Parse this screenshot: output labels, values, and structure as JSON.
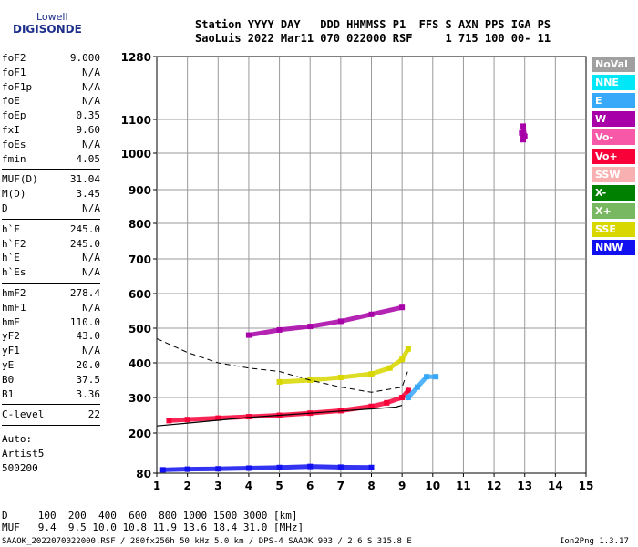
{
  "logo": {
    "line1": "Lowell",
    "line2": "DIGISONDE"
  },
  "header": {
    "line1": "Station YYYY DAY   DDD HHMMSS P1  FFS S AXN PPS IGA PS",
    "line2": "SaoLuis 2022 Mar11 070 022000 RSF     1 715 100 00- 11"
  },
  "params": [
    {
      "name": "foF2",
      "value": "9.000"
    },
    {
      "name": "foF1",
      "value": "N/A"
    },
    {
      "name": "foF1p",
      "value": "N/A"
    },
    {
      "name": "foE",
      "value": "N/A"
    },
    {
      "name": "foEp",
      "value": "0.35"
    },
    {
      "name": "fxI",
      "value": "9.60"
    },
    {
      "name": "foEs",
      "value": "N/A"
    },
    {
      "name": "fmin",
      "value": "4.05"
    },
    {
      "name": "MUF(D)",
      "value": "31.04"
    },
    {
      "name": "M(D)",
      "value": "3.45"
    },
    {
      "name": "D",
      "value": "N/A"
    },
    {
      "name": "h`F",
      "value": "245.0"
    },
    {
      "name": "h`F2",
      "value": "245.0"
    },
    {
      "name": "h`E",
      "value": "N/A"
    },
    {
      "name": "h`Es",
      "value": "N/A"
    },
    {
      "name": "hmF2",
      "value": "278.4"
    },
    {
      "name": "hmF1",
      "value": "N/A"
    },
    {
      "name": "hmE",
      "value": "110.0"
    },
    {
      "name": "yF2",
      "value": "43.0"
    },
    {
      "name": "yF1",
      "value": "N/A"
    },
    {
      "name": "yE",
      "value": "20.0"
    },
    {
      "name": "B0",
      "value": "37.5"
    },
    {
      "name": "B1",
      "value": "3.36"
    },
    {
      "name": "C-level",
      "value": "22"
    }
  ],
  "autoscaler": {
    "line1": "Auto:",
    "line2": "Artist5",
    "line3": "500200"
  },
  "footer": {
    "d_row": "D     100  200  400  600  800 1000 1500 3000 [km]",
    "muf_row": "MUF   9.4  9.5 10.0 10.8 11.9 13.6 18.4 31.0 [MHz]",
    "file_info": "SAAOK_2022070022000.RSF / 280fx256h 50 kHz 5.0 km / DPS-4 SAAOK 903 / 2.6 S 315.8 E",
    "version": "Ion2Png 1.3.17"
  },
  "legend": [
    {
      "label": "NoVal",
      "color": "#a0a0a0"
    },
    {
      "label": "NNE",
      "color": "#00e8f8"
    },
    {
      "label": "E",
      "color": "#38a8f8"
    },
    {
      "label": "W",
      "color": "#a800a8"
    },
    {
      "label": "Vo-",
      "color": "#f858a8"
    },
    {
      "label": "Vo+",
      "color": "#f80038"
    },
    {
      "label": "SSW",
      "color": "#f8b0b0"
    },
    {
      "label": "X-",
      "color": "#008000"
    },
    {
      "label": "X+",
      "color": "#78b860"
    },
    {
      "label": "SSE",
      "color": "#d8d800"
    },
    {
      "label": "NNW",
      "color": "#1010f0"
    }
  ],
  "chart_data": {
    "type": "scatter",
    "xlabel": "",
    "ylabel": "",
    "xlim": [
      1,
      15
    ],
    "ylim": [
      80,
      1280
    ],
    "x_ticks": [
      1,
      2,
      3,
      4,
      5,
      6,
      7,
      8,
      9,
      10,
      11,
      12,
      13,
      14,
      15
    ],
    "y_ticks": [
      80,
      200,
      300,
      400,
      500,
      600,
      700,
      800,
      900,
      1000,
      1100,
      1280
    ],
    "traces": [
      {
        "name": "O-trace F2",
        "color": "#f80038",
        "points": [
          [
            1.4,
            235
          ],
          [
            2.0,
            238
          ],
          [
            3.0,
            242
          ],
          [
            4.0,
            246
          ],
          [
            5.0,
            250
          ],
          [
            6.0,
            256
          ],
          [
            7.0,
            263
          ],
          [
            8.0,
            275
          ],
          [
            8.5,
            285
          ],
          [
            9.0,
            300
          ],
          [
            9.2,
            320
          ]
        ]
      },
      {
        "name": "X-trace F2",
        "color": "#d8d800",
        "points": [
          [
            5.0,
            345
          ],
          [
            6.0,
            350
          ],
          [
            7.0,
            358
          ],
          [
            8.0,
            368
          ],
          [
            8.6,
            385
          ],
          [
            9.0,
            410
          ],
          [
            9.2,
            440
          ]
        ]
      },
      {
        "name": "E-region echoes",
        "color": "#1010f0",
        "points": [
          [
            1.2,
            90
          ],
          [
            2.0,
            92
          ],
          [
            3.0,
            93
          ],
          [
            4.0,
            95
          ],
          [
            5.0,
            97
          ],
          [
            6.0,
            100
          ],
          [
            7.0,
            98
          ],
          [
            8.0,
            97
          ]
        ]
      },
      {
        "name": "Multiple hop",
        "color": "#a800a8",
        "points": [
          [
            4.0,
            480
          ],
          [
            5.0,
            495
          ],
          [
            6.0,
            505
          ],
          [
            7.0,
            520
          ],
          [
            8.0,
            540
          ],
          [
            9.0,
            560
          ]
        ]
      },
      {
        "name": "Side echoes",
        "color": "#38a8f8",
        "points": [
          [
            9.2,
            300
          ],
          [
            9.5,
            330
          ],
          [
            9.8,
            360
          ],
          [
            10.1,
            360
          ]
        ]
      },
      {
        "name": "Spread echoes",
        "color": "#a800a8",
        "points": [
          [
            12.9,
            1060
          ],
          [
            12.95,
            1040
          ],
          [
            12.95,
            1080
          ],
          [
            13.0,
            1050
          ]
        ]
      }
    ],
    "profile_curve": [
      [
        1.0,
        220
      ],
      [
        2.0,
        228
      ],
      [
        3.0,
        236
      ],
      [
        4.0,
        244
      ],
      [
        5.0,
        250
      ],
      [
        6.0,
        256
      ],
      [
        7.0,
        262
      ],
      [
        8.0,
        268
      ],
      [
        8.8,
        273
      ],
      [
        9.0,
        278
      ]
    ],
    "dashed_curve": [
      [
        1.0,
        470
      ],
      [
        2.0,
        430
      ],
      [
        3.0,
        400
      ],
      [
        4.0,
        385
      ],
      [
        5.0,
        375
      ],
      [
        6.0,
        350
      ],
      [
        7.0,
        330
      ],
      [
        8.0,
        315
      ],
      [
        9.0,
        330
      ],
      [
        9.2,
        380
      ]
    ]
  }
}
